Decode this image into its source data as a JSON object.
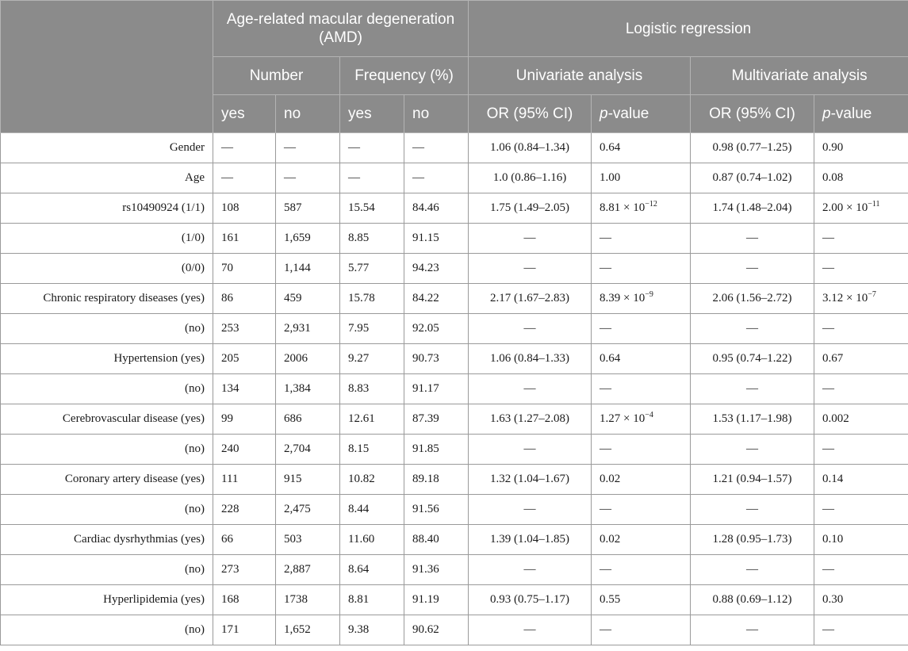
{
  "header": {
    "amd": "Age-related macular degeneration (AMD)",
    "logistic": "Logistic regression",
    "number": "Number",
    "frequency": "Frequency (%)",
    "univariate": "Univariate analysis",
    "multivariate": "Multivariate analysis",
    "yes1": "yes",
    "no1": "no",
    "yes2": "yes",
    "no2": "no",
    "or1": "OR (95% CI)",
    "p1_italic": "p",
    "p1_rest": "-value",
    "or2": "OR (95% CI)",
    "p2_italic": "p",
    "p2_rest": "-value"
  },
  "rows": [
    {
      "label": "Gender",
      "num_yes": "—",
      "num_no": "—",
      "freq_yes": "—",
      "freq_no": "—",
      "uni_or": "1.06 (0.84–1.34)",
      "uni_p": "0.64",
      "multi_or": "0.98 (0.77–1.25)",
      "multi_p": "0.90"
    },
    {
      "label": "Age",
      "num_yes": "—",
      "num_no": "—",
      "freq_yes": "—",
      "freq_no": "—",
      "uni_or": "1.0 (0.86–1.16)",
      "uni_p": "1.00",
      "multi_or": "0.87 (0.74–1.02)",
      "multi_p": "0.08"
    },
    {
      "label": "rs10490924 (1/1)",
      "num_yes": "108",
      "num_no": "587",
      "freq_yes": "15.54",
      "freq_no": "84.46",
      "uni_or": "1.75 (1.49–2.05)",
      "uni_p": "8.81 × 10",
      "uni_p_exp": "−12",
      "multi_or": "1.74 (1.48–2.04)",
      "multi_p": "2.00 × 10",
      "multi_p_exp": "−11"
    },
    {
      "label": "(1/0)",
      "num_yes": "161",
      "num_no": "1,659",
      "freq_yes": "8.85",
      "freq_no": "91.15",
      "uni_or": "—",
      "uni_p": "—",
      "multi_or": "—",
      "multi_p": "—"
    },
    {
      "label": "(0/0)",
      "num_yes": "70",
      "num_no": "1,144",
      "freq_yes": "5.77",
      "freq_no": "94.23",
      "uni_or": "—",
      "uni_p": "—",
      "multi_or": "—",
      "multi_p": "—"
    },
    {
      "label": "Chronic respiratory diseases (yes)",
      "num_yes": "86",
      "num_no": "459",
      "freq_yes": "15.78",
      "freq_no": "84.22",
      "uni_or": "2.17 (1.67–2.83)",
      "uni_p": "8.39 × 10",
      "uni_p_exp": "−9",
      "multi_or": "2.06 (1.56–2.72)",
      "multi_p": "3.12 × 10",
      "multi_p_exp": "−7"
    },
    {
      "label": "(no)",
      "num_yes": "253",
      "num_no": "2,931",
      "freq_yes": "7.95",
      "freq_no": "92.05",
      "uni_or": "—",
      "uni_p": "—",
      "multi_or": "—",
      "multi_p": "—"
    },
    {
      "label": "Hypertension (yes)",
      "num_yes": "205",
      "num_no": "2006",
      "freq_yes": "9.27",
      "freq_no": "90.73",
      "uni_or": "1.06 (0.84–1.33)",
      "uni_p": "0.64",
      "multi_or": "0.95 (0.74–1.22)",
      "multi_p": "0.67"
    },
    {
      "label": "(no)",
      "num_yes": "134",
      "num_no": "1,384",
      "freq_yes": "8.83",
      "freq_no": "91.17",
      "uni_or": "—",
      "uni_p": "—",
      "multi_or": "—",
      "multi_p": "—"
    },
    {
      "label": "Cerebrovascular disease (yes)",
      "num_yes": "99",
      "num_no": "686",
      "freq_yes": "12.61",
      "freq_no": "87.39",
      "uni_or": "1.63 (1.27–2.08)",
      "uni_p": "1.27 × 10",
      "uni_p_exp": "−4",
      "multi_or": "1.53 (1.17–1.98)",
      "multi_p": "0.002"
    },
    {
      "label": "(no)",
      "num_yes": "240",
      "num_no": "2,704",
      "freq_yes": "8.15",
      "freq_no": "91.85",
      "uni_or": "—",
      "uni_p": "—",
      "multi_or": "—",
      "multi_p": "—"
    },
    {
      "label": "Coronary artery disease (yes)",
      "num_yes": "111",
      "num_no": "915",
      "freq_yes": "10.82",
      "freq_no": "89.18",
      "uni_or": "1.32 (1.04–1.67)",
      "uni_p": "0.02",
      "multi_or": "1.21 (0.94–1.57)",
      "multi_p": "0.14"
    },
    {
      "label": "(no)",
      "num_yes": "228",
      "num_no": "2,475",
      "freq_yes": "8.44",
      "freq_no": "91.56",
      "uni_or": "—",
      "uni_p": "—",
      "multi_or": "—",
      "multi_p": "—"
    },
    {
      "label": "Cardiac dysrhythmias (yes)",
      "num_yes": "66",
      "num_no": "503",
      "freq_yes": "11.60",
      "freq_no": "88.40",
      "uni_or": "1.39 (1.04–1.85)",
      "uni_p": "0.02",
      "multi_or": "1.28 (0.95–1.73)",
      "multi_p": "0.10"
    },
    {
      "label": "(no)",
      "num_yes": "273",
      "num_no": "2,887",
      "freq_yes": "8.64",
      "freq_no": "91.36",
      "uni_or": "—",
      "uni_p": "—",
      "multi_or": "—",
      "multi_p": "—"
    },
    {
      "label": "Hyperlipidemia (yes)",
      "num_yes": "168",
      "num_no": "1738",
      "freq_yes": "8.81",
      "freq_no": "91.19",
      "uni_or": "0.93 (0.75–1.17)",
      "uni_p": "0.55",
      "multi_or": "0.88 (0.69–1.12)",
      "multi_p": "0.30"
    },
    {
      "label": "(no)",
      "num_yes": "171",
      "num_no": "1,652",
      "freq_yes": "9.38",
      "freq_no": "90.62",
      "uni_or": "—",
      "uni_p": "—",
      "multi_or": "—",
      "multi_p": "—"
    }
  ]
}
